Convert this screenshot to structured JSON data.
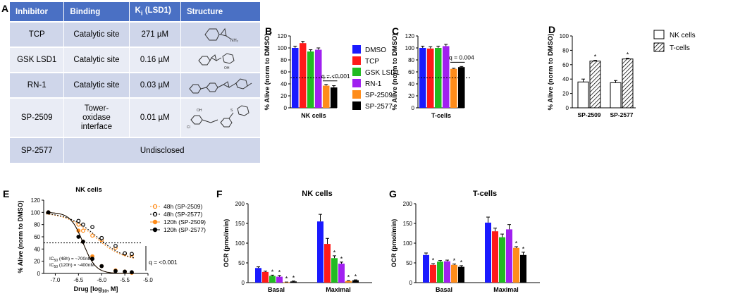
{
  "panels": {
    "A": "A",
    "B": "B",
    "C": "C",
    "D": "D",
    "E": "E",
    "F": "F",
    "G": "G"
  },
  "table": {
    "headers": {
      "inhibitor": "Inhibitor",
      "binding": "Binding",
      "ki": "K",
      "ki_sub": "i",
      "ki_rest": " (LSD1)",
      "structure": "Structure"
    },
    "rows": [
      {
        "inhibitor": "TCP",
        "binding": "Catalytic site",
        "ki": "271 µM"
      },
      {
        "inhibitor": "GSK LSD1",
        "binding": "Catalytic site",
        "ki": "0.16 µM"
      },
      {
        "inhibitor": "RN-1",
        "binding": "Catalytic site",
        "ki": "0.03 µM"
      },
      {
        "inhibitor": "SP-2509",
        "binding_line1": "Tower-",
        "binding_line2": "oxidase",
        "binding_line3": "interface",
        "ki": "0.01 µM"
      },
      {
        "inhibitor": "SP-2577",
        "undisclosed": "Undisclosed"
      }
    ]
  },
  "colors": {
    "DMSO": "#1a1aff",
    "TCP": "#ff1a1a",
    "GSK LSD1": "#22bb22",
    "RN-1": "#a020f0",
    "SP-2509": "#ff8c1a",
    "SP-2577": "#000000"
  },
  "chart_data": [
    {
      "id": "B",
      "type": "bar",
      "ylabel": "% Alive (norm to DMSO)",
      "xlabel": "NK cells",
      "ylim": [
        0,
        120
      ],
      "yticks": [
        0,
        20,
        40,
        60,
        80,
        100,
        120
      ],
      "categories": [
        "DMSO",
        "TCP",
        "GSK LSD1",
        "RN-1",
        "SP-2509",
        "SP-2577"
      ],
      "values": [
        100,
        108,
        94,
        97,
        37,
        34
      ],
      "errors": [
        3,
        3,
        3,
        3,
        2,
        3
      ],
      "refline": 50,
      "annotation": "q = <0.001"
    },
    {
      "id": "C",
      "type": "bar",
      "ylabel": "% Alive (norm to DMSO)",
      "xlabel": "T-cells",
      "ylim": [
        0,
        120
      ],
      "yticks": [
        0,
        20,
        40,
        60,
        80,
        100,
        120
      ],
      "categories": [
        "DMSO",
        "TCP",
        "GSK LSD1",
        "RN-1",
        "SP-2509",
        "SP-2577"
      ],
      "values": [
        100,
        99,
        100,
        103,
        65,
        68
      ],
      "errors": [
        3,
        3,
        3,
        3,
        1,
        1
      ],
      "refline": 50,
      "annotation": "q = 0.004"
    },
    {
      "id": "legend_bc",
      "type": "legend",
      "entries": [
        "DMSO",
        "TCP",
        "GSK LSD1",
        "RN-1",
        "SP-2509",
        "SP-2577"
      ]
    },
    {
      "id": "D",
      "type": "bar",
      "ylabel": "% Alive (norm to DMSO)",
      "ylim": [
        0,
        100
      ],
      "yticks": [
        0,
        20,
        40,
        60,
        80,
        100
      ],
      "categories": [
        "SP-2509",
        "SP-2577"
      ],
      "series": [
        {
          "name": "NK cells",
          "values": [
            36,
            35
          ],
          "errors": [
            4,
            3
          ]
        },
        {
          "name": "T-cells",
          "values": [
            65,
            68
          ],
          "errors": [
            1,
            1
          ]
        }
      ],
      "star": "*"
    },
    {
      "id": "E",
      "type": "line",
      "title": "NK cells",
      "ylabel": "% Alive (norm to DMSO)",
      "xlabel": "Drug [log",
      "xlabel_sub": "10",
      "xlabel_rest": ", M]",
      "xlim": [
        -7.25,
        -5.0
      ],
      "ylim": [
        0,
        120
      ],
      "xticks": [
        -7.0,
        -6.5,
        -6.0,
        -5.5,
        -5.0
      ],
      "xtick_labels": [
        "-7.0",
        "-6.5",
        "-6.0",
        "-5.5",
        "-5.0"
      ],
      "yticks": [
        0,
        20,
        40,
        60,
        80,
        100,
        120
      ],
      "refline": 50,
      "series": [
        {
          "name": "48h (SP-2509)",
          "style": "open",
          "color": "#ff8c1a",
          "dash": true,
          "x": [
            -7.15,
            -6.5,
            -6.4,
            -6.2,
            -6.0,
            -5.7,
            -5.5,
            -5.35
          ],
          "y": [
            100,
            80,
            70,
            62,
            55,
            42,
            32,
            30
          ],
          "ic": -6.15
        },
        {
          "name": "48h (SP-2577)",
          "style": "open",
          "color": "#000000",
          "dash": true,
          "x": [
            -7.15,
            -6.5,
            -6.4,
            -6.2,
            -6.0,
            -5.7,
            -5.5,
            -5.35
          ],
          "y": [
            100,
            86,
            80,
            76,
            58,
            45,
            33,
            32
          ],
          "ic": -6.1
        },
        {
          "name": "120h (SP-2509)",
          "style": "filled",
          "color": "#ff8c1a",
          "dash": false,
          "x": [
            -7.15,
            -6.5,
            -6.4,
            -6.2,
            -6.0,
            -5.7,
            -5.5,
            -5.35
          ],
          "y": [
            100,
            70,
            52,
            28,
            12,
            5,
            3,
            1
          ],
          "ic": -6.4
        },
        {
          "name": "120h (SP-2577)",
          "style": "filled",
          "color": "#000000",
          "dash": false,
          "x": [
            -7.15,
            -6.5,
            -6.4,
            -6.2,
            -6.0,
            -5.7,
            -5.5,
            -5.35
          ],
          "y": [
            100,
            60,
            52,
            24,
            12,
            4,
            3,
            2
          ],
          "ic": -6.4
        }
      ],
      "ic_text1": "IC",
      "ic_sub": "50",
      "ic_text1_rest": " (48h) = ~700nM",
      "ic_text2_rest": " (120h) = ~400nM",
      "annotation": "q = <0.001"
    },
    {
      "id": "F",
      "type": "bar",
      "title": "NK cells",
      "ylabel": "OCR (pmol/min)",
      "ylim": [
        0,
        200
      ],
      "yticks": [
        0,
        50,
        100,
        150,
        200
      ],
      "categories": [
        "Basal",
        "Maximal"
      ],
      "series_names": [
        "DMSO",
        "TCP",
        "GSK LSD1",
        "RN-1",
        "SP-2509",
        "SP-2577"
      ],
      "values": [
        [
          37,
          27,
          17,
          15,
          1,
          3
        ],
        [
          155,
          98,
          62,
          48,
          4,
          6
        ]
      ],
      "errors": [
        [
          3,
          2,
          2,
          3,
          0.5,
          1
        ],
        [
          18,
          14,
          6,
          4,
          1,
          1
        ]
      ],
      "stars": [
        [
          false,
          false,
          true,
          true,
          true,
          true
        ],
        [
          false,
          false,
          true,
          true,
          true,
          true
        ]
      ],
      "star": "*"
    },
    {
      "id": "G",
      "type": "bar",
      "title": "T-cells",
      "ylabel": "OCR (pmol/min)",
      "ylim": [
        0,
        200
      ],
      "yticks": [
        0,
        50,
        100,
        150,
        200
      ],
      "categories": [
        "Basal",
        "Maximal"
      ],
      "series_names": [
        "DMSO",
        "TCP",
        "GSK LSD1",
        "RN-1",
        "SP-2509",
        "SP-2577"
      ],
      "values": [
        [
          70,
          45,
          53,
          54,
          45,
          40
        ],
        [
          152,
          130,
          115,
          135,
          88,
          70
        ]
      ],
      "errors": [
        [
          5,
          3,
          3,
          3,
          2,
          3
        ],
        [
          14,
          8,
          8,
          12,
          3,
          7
        ]
      ],
      "stars": [
        [
          false,
          true,
          false,
          false,
          true,
          true
        ],
        [
          false,
          false,
          false,
          false,
          true,
          true
        ]
      ],
      "star": "*"
    }
  ]
}
